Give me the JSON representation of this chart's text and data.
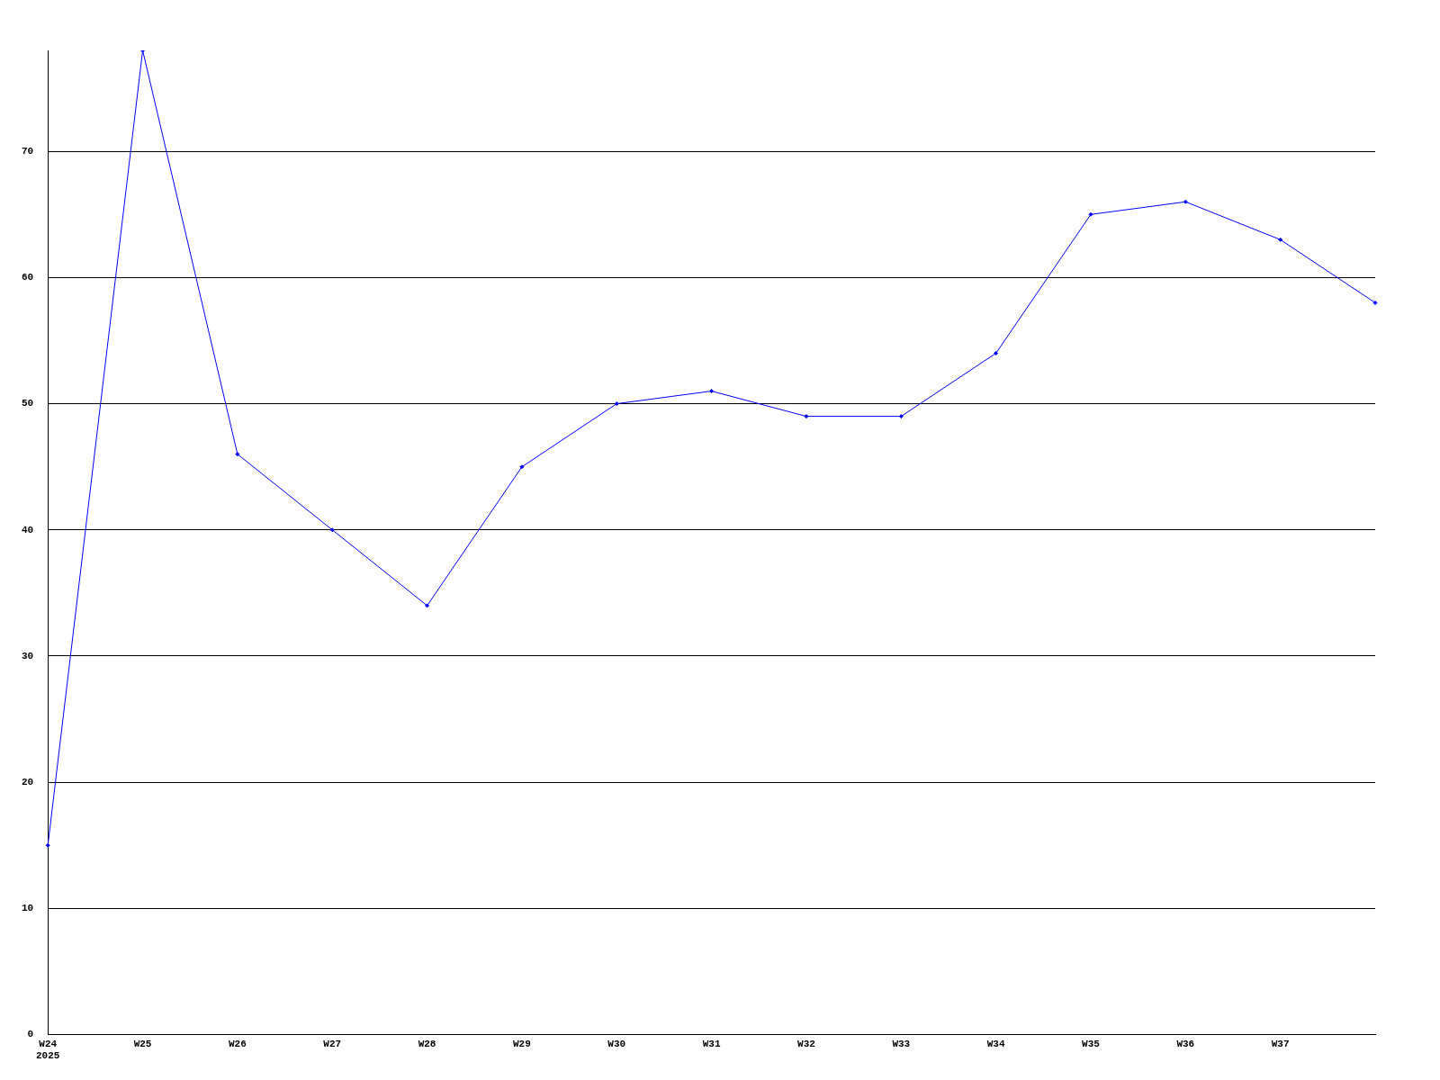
{
  "chart_data": {
    "type": "line",
    "categories": [
      "W24\n2025",
      "W25",
      "W26",
      "W27",
      "W28",
      "W29",
      "W30",
      "W31",
      "W32",
      "W33",
      "W34",
      "W35",
      "W36",
      "W37",
      null
    ],
    "series": [
      {
        "color": "#0000ff",
        "values": [
          15,
          78,
          46,
          40,
          34,
          45,
          50,
          51,
          49,
          49,
          54,
          65,
          66,
          63,
          58
        ]
      }
    ],
    "ylim": [
      0,
      78
    ],
    "yticks": [
      0,
      10,
      20,
      30,
      40,
      50,
      60,
      70
    ],
    "grid": "y",
    "legend": false,
    "marker": "diamond",
    "line_style": "solid"
  }
}
